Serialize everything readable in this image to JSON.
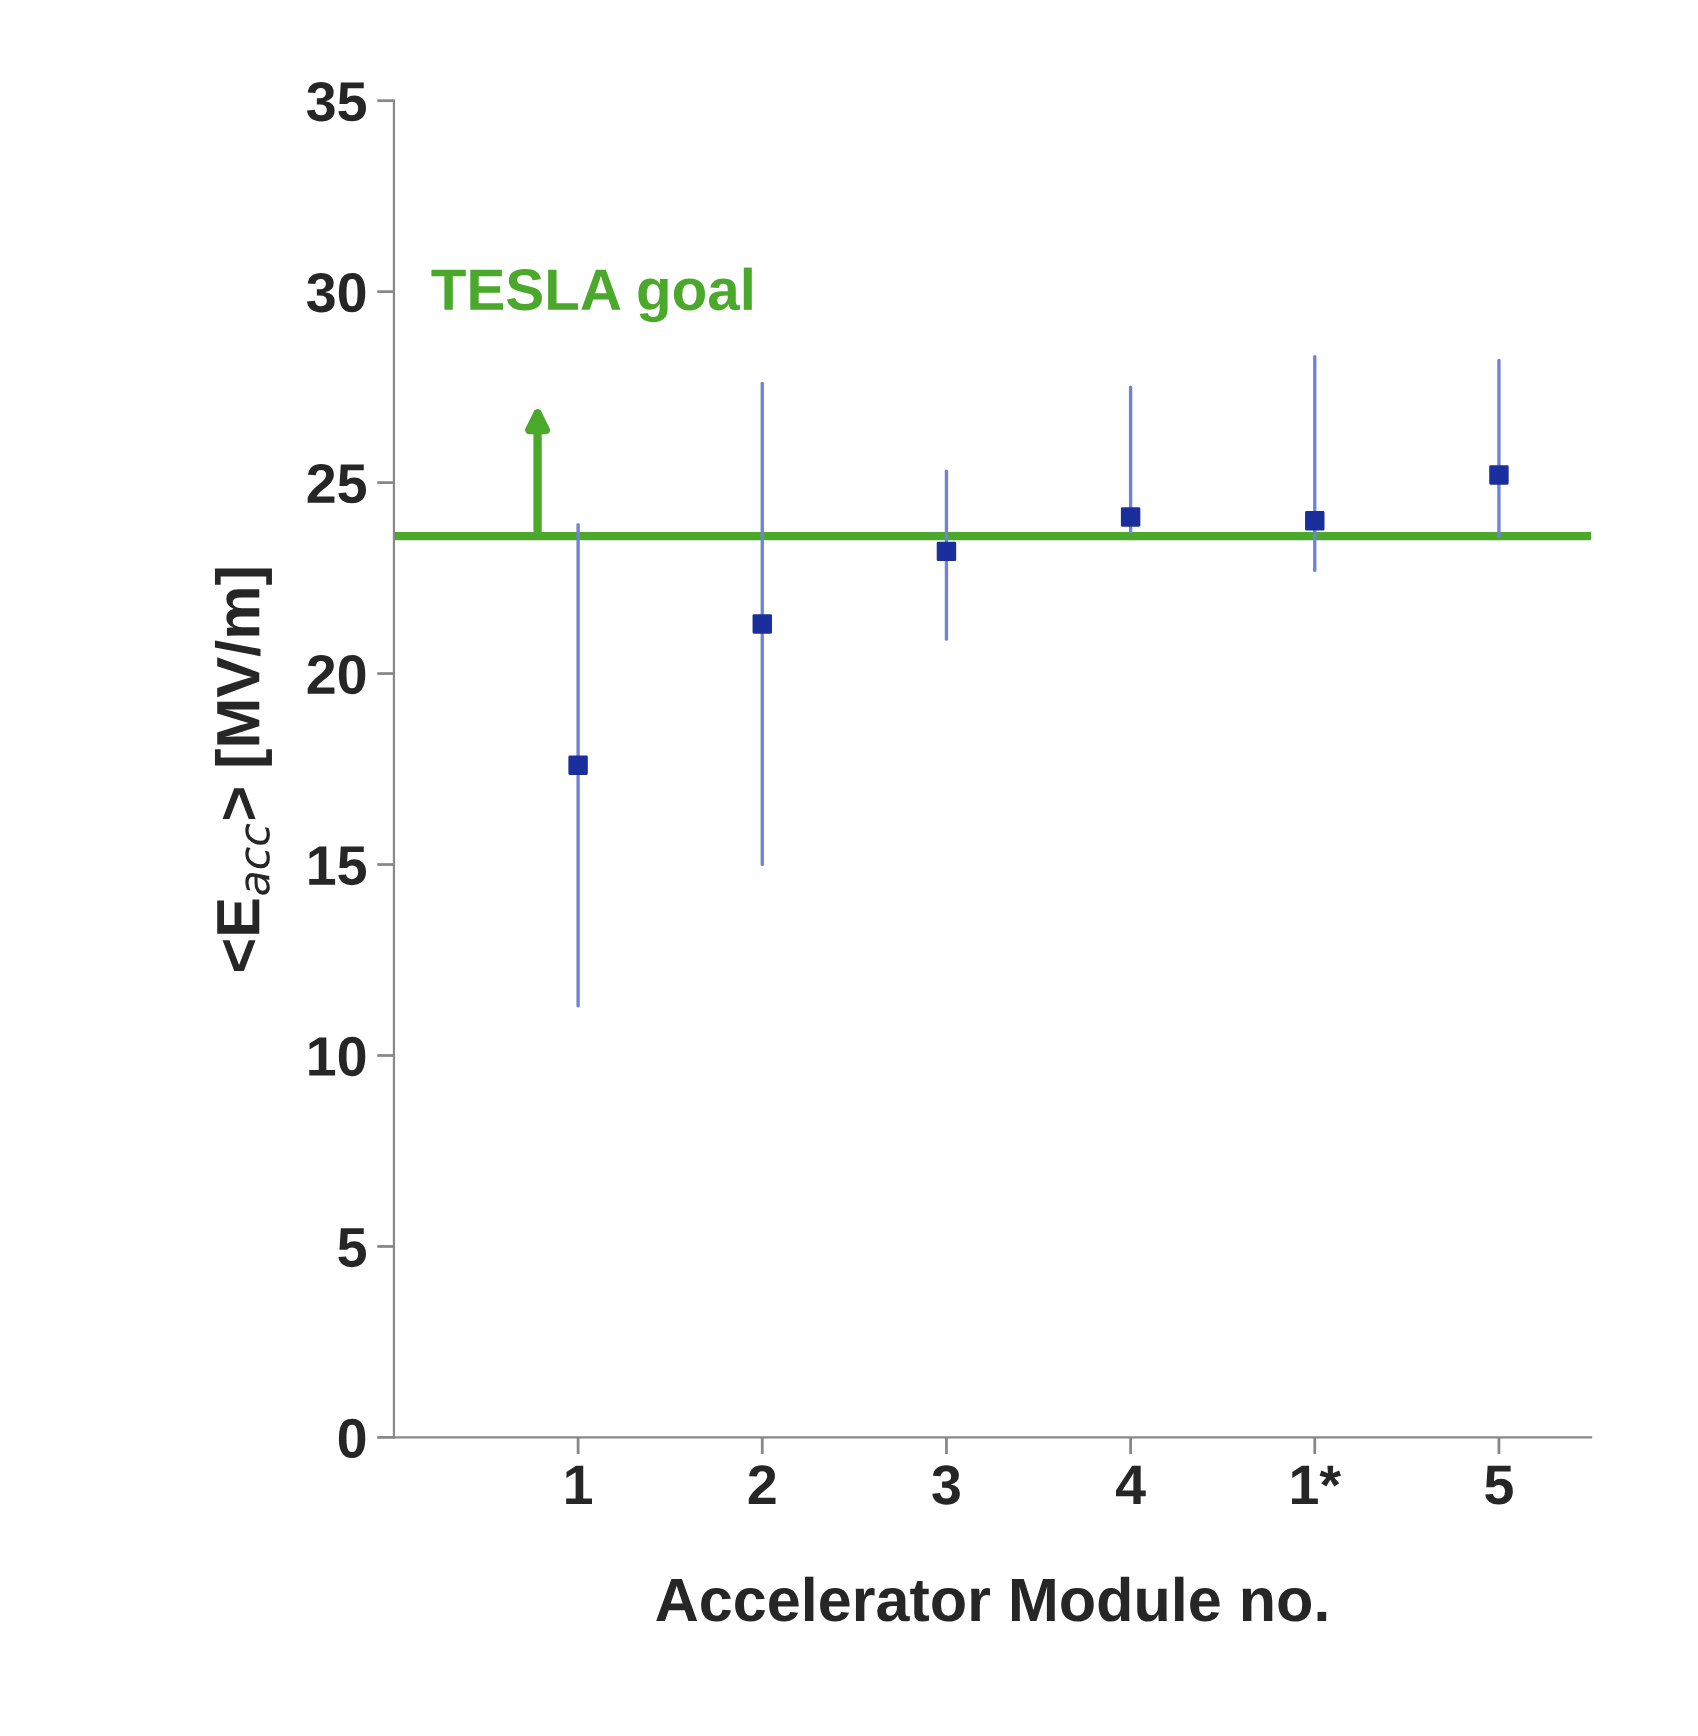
{
  "chart_data": {
    "type": "scatter",
    "xlabel": "Accelerator Module no.",
    "ylabel": "<E$_{acc}$> [MV/m]",
    "categories": [
      "1",
      "2",
      "3",
      "4",
      "1*",
      "5"
    ],
    "series": [
      {
        "color": "#1a2f9c",
        "values": [
          17.6,
          21.3,
          23.2,
          24.1,
          24.0,
          25.2
        ],
        "errors": [
          [
            11.3,
            23.9
          ],
          [
            15.0,
            27.6
          ],
          [
            20.9,
            25.3
          ],
          [
            23.7,
            27.5
          ],
          [
            22.7,
            28.3
          ],
          [
            23.6,
            28.2
          ]
        ]
      }
    ],
    "ylim": [
      0,
      35
    ],
    "yticks": [
      0,
      5,
      10,
      15,
      20,
      25,
      30,
      35
    ],
    "ref_lines": [
      {
        "axis": "y",
        "value": 23.6,
        "label": "TESLA goal",
        "color": "#4aa82a",
        "line_style": "solid"
      }
    ],
    "marker": "square",
    "grid": false,
    "legend": false
  }
}
